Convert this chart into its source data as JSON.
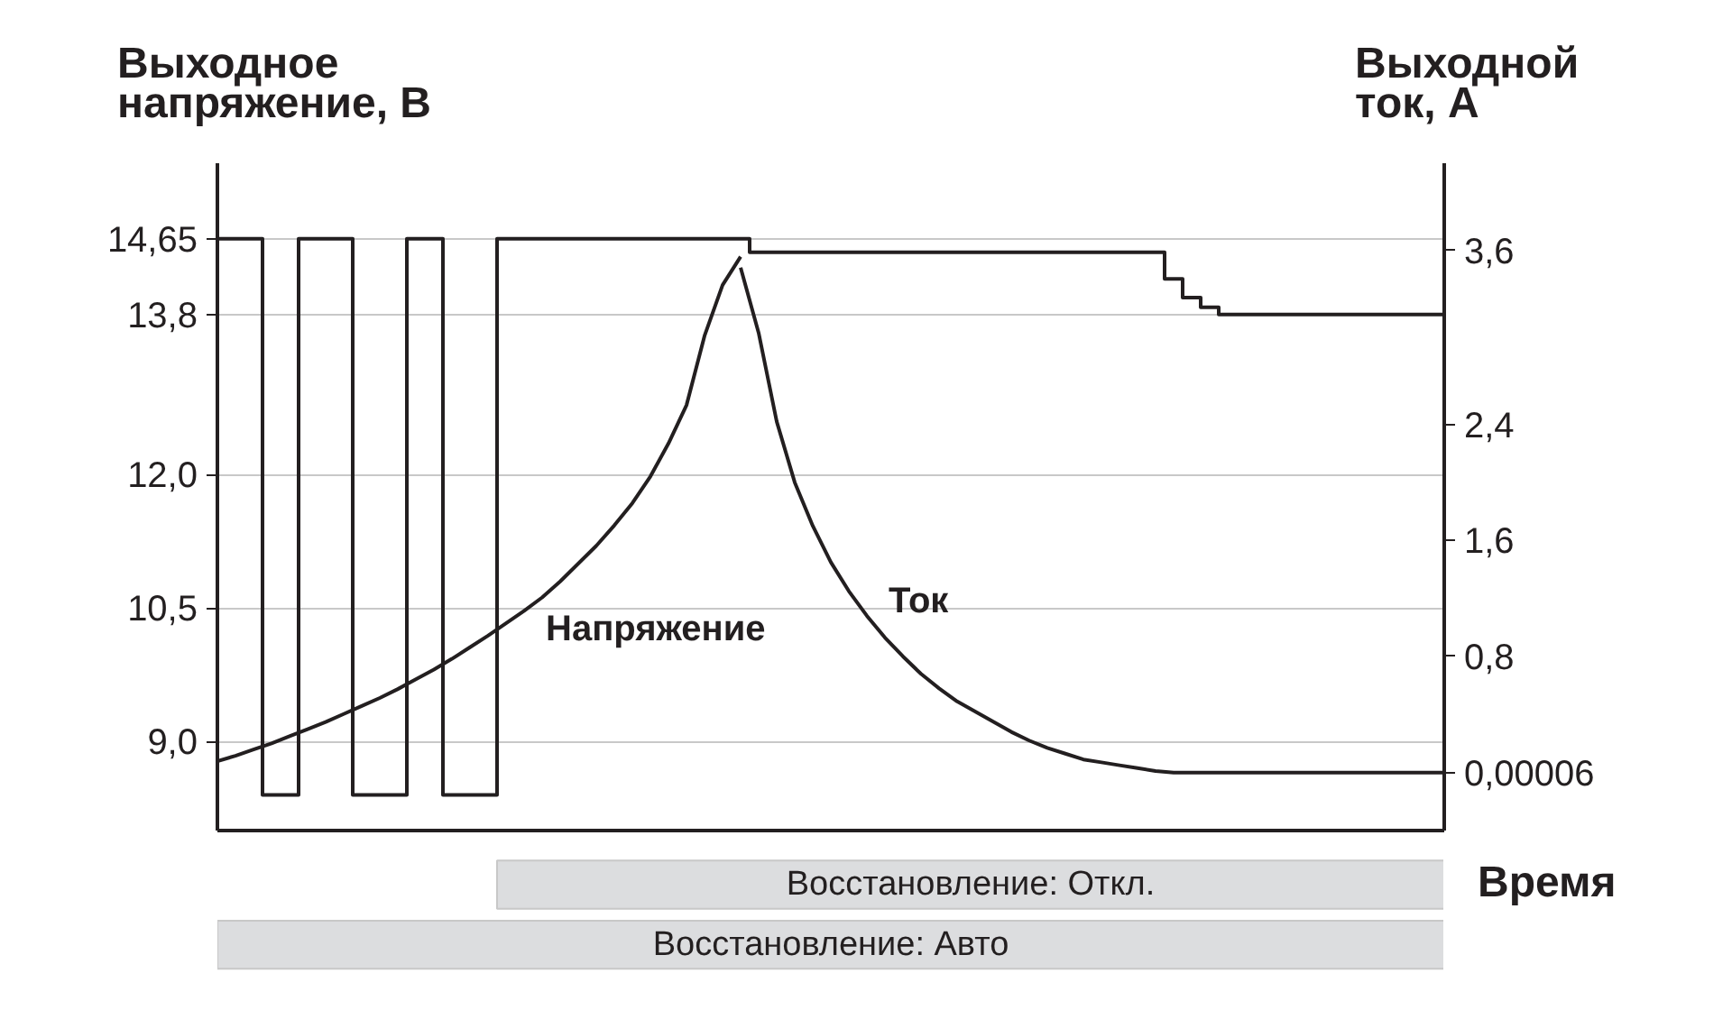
{
  "chart_data": {
    "type": "line",
    "xlabel": "Время",
    "ylabel": "Выходное напряжение, В",
    "y2label": "Выходной ток, А",
    "categories": [
      null,
      null,
      null,
      null,
      null,
      null,
      null,
      null,
      null,
      null,
      null,
      null,
      null,
      null,
      null,
      null,
      null,
      null,
      null,
      null,
      null,
      null,
      null,
      null,
      null,
      null,
      null,
      null,
      null,
      null,
      null,
      null,
      null,
      null,
      null,
      null,
      null,
      null,
      null,
      null,
      null,
      null,
      null,
      null,
      null,
      null,
      null,
      null,
      null,
      null,
      null,
      null,
      null,
      null,
      null,
      null,
      null,
      null,
      null,
      null,
      null,
      null,
      null,
      null,
      null,
      null,
      null,
      null,
      null
    ],
    "series": [
      {
        "type": "step",
        "color": "#231f20",
        "values": [
          14.65,
          14.65,
          14.65,
          8.4,
          8.4,
          14.65,
          14.65,
          14.65,
          8.4,
          8.4,
          8.4,
          14.65,
          14.65,
          8.4,
          8.4,
          8.4,
          14.65,
          14.65,
          14.65,
          14.65,
          14.65,
          14.65,
          14.65,
          14.65,
          14.65,
          14.65,
          14.65,
          14.65,
          14.65,
          14.65,
          14.5,
          14.5,
          14.5,
          14.5,
          14.5,
          14.5,
          14.5,
          14.5,
          14.5,
          14.5,
          14.5,
          14.5,
          14.5,
          14.5,
          14.5,
          14.5,
          14.5,
          14.5,
          14.5,
          14.5,
          14.5,
          14.5,
          14.5,
          14.2,
          13.99,
          13.88,
          13.8,
          13.8,
          13.8,
          13.8,
          13.8,
          13.8,
          13.8,
          13.8,
          13.8,
          13.8,
          13.8,
          13.8,
          13.8
        ]
      },
      {
        "name": "Напряжение",
        "color": "#231f20",
        "values": [
          8.78,
          8.84,
          8.91,
          8.98,
          9.06,
          9.14,
          9.22,
          9.31,
          9.4,
          9.49,
          9.59,
          9.7,
          9.81,
          9.93,
          10.06,
          10.19,
          10.33,
          10.47,
          10.62,
          10.8,
          11.0,
          11.2,
          11.43,
          11.68,
          11.98,
          12.35,
          12.78,
          13.56,
          14.13,
          14.45,
          null,
          null,
          null,
          null,
          null,
          null,
          null,
          null,
          null,
          null,
          null,
          null,
          null,
          null,
          null,
          null,
          null,
          null,
          null,
          null,
          null,
          null,
          null,
          null,
          null,
          null,
          null,
          null,
          null,
          null,
          null,
          null,
          null,
          null,
          null,
          null,
          null,
          null,
          null
        ]
      },
      {
        "name": "Ток",
        "axis": "y2",
        "color": "#231f20",
        "values": [
          null,
          null,
          null,
          null,
          null,
          null,
          null,
          null,
          null,
          null,
          null,
          null,
          null,
          null,
          null,
          null,
          null,
          null,
          null,
          null,
          null,
          null,
          null,
          null,
          null,
          null,
          null,
          null,
          null,
          3.48,
          3.03,
          2.42,
          2.0,
          1.7,
          1.45,
          1.25,
          1.08,
          0.93,
          0.8,
          0.68,
          0.58,
          0.49,
          0.42,
          0.35,
          0.28,
          0.22,
          0.17,
          0.13,
          0.09,
          0.07,
          0.05,
          0.03,
          0.01,
          0,
          0,
          0,
          0,
          0,
          0,
          0,
          0,
          0,
          0,
          0,
          0,
          0,
          0,
          0,
          0
        ]
      }
    ],
    "ylim": [
      8.0,
      15.5
    ],
    "yticks": [
      {
        "value": 9.0,
        "label": "9,0"
      },
      {
        "value": 10.5,
        "label": "10,5"
      },
      {
        "value": 12.0,
        "label": "12,0"
      },
      {
        "value": 13.8,
        "label": "13,8"
      },
      {
        "value": 14.65,
        "label": "14,65"
      }
    ],
    "y2lim": [
      -0.4,
      4.2
    ],
    "y2ticks": [
      {
        "value": 6e-05,
        "label": "0,00006"
      },
      {
        "value": 0.8,
        "label": "0,8"
      },
      {
        "value": 1.6,
        "label": "1,6"
      },
      {
        "value": 2.4,
        "label": "2,4"
      },
      {
        "value": 3.6,
        "label": "3,6"
      }
    ],
    "grid": "y",
    "legend": false,
    "annotations": [
      "Восстановление: Откл.",
      "Восстановление: Авто"
    ]
  }
}
